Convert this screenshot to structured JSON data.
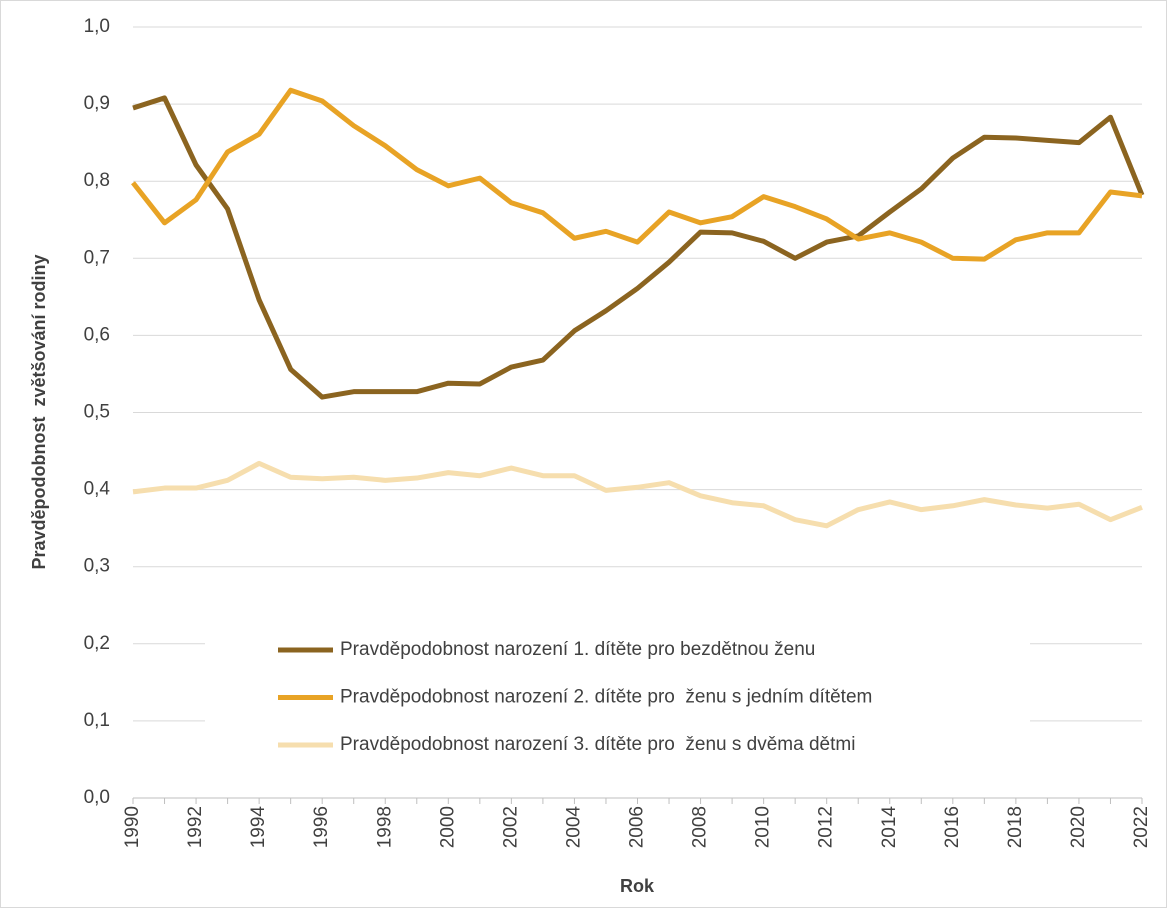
{
  "chart_data": {
    "type": "line",
    "x": [
      1990,
      1991,
      1992,
      1993,
      1994,
      1995,
      1996,
      1997,
      1998,
      1999,
      2000,
      2001,
      2002,
      2003,
      2004,
      2005,
      2006,
      2007,
      2008,
      2009,
      2010,
      2011,
      2012,
      2013,
      2014,
      2015,
      2016,
      2017,
      2018,
      2019,
      2020,
      2021,
      2022
    ],
    "series": [
      {
        "name": "Pravděpodobnost narození 1. dítěte pro bezdětnou ženu",
        "color": "#8b6420",
        "values": [
          0.895,
          0.908,
          0.821,
          0.764,
          0.646,
          0.556,
          0.52,
          0.527,
          0.527,
          0.527,
          0.538,
          0.537,
          0.559,
          0.568,
          0.606,
          0.632,
          0.661,
          0.695,
          0.734,
          0.733,
          0.722,
          0.7,
          0.721,
          0.729,
          0.76,
          0.79,
          0.83,
          0.857,
          0.856,
          0.853,
          0.85,
          0.883,
          0.782
        ]
      },
      {
        "name": "Pravděpodobnost narození 2. dítěte pro  ženu s jedním dítětem",
        "color": "#e8a325",
        "values": [
          0.798,
          0.746,
          0.776,
          0.838,
          0.861,
          0.918,
          0.904,
          0.872,
          0.846,
          0.815,
          0.794,
          0.804,
          0.772,
          0.759,
          0.726,
          0.735,
          0.721,
          0.76,
          0.746,
          0.754,
          0.78,
          0.767,
          0.751,
          0.725,
          0.733,
          0.721,
          0.7,
          0.699,
          0.724,
          0.733,
          0.733,
          0.786,
          0.781
        ]
      },
      {
        "name": "Pravděpodobnost narození 3. dítěte pro  ženu s dvěma dětmi",
        "color": "#f6deae",
        "values": [
          0.397,
          0.402,
          0.402,
          0.412,
          0.434,
          0.416,
          0.414,
          0.416,
          0.412,
          0.415,
          0.422,
          0.418,
          0.428,
          0.418,
          0.418,
          0.399,
          0.403,
          0.409,
          0.392,
          0.383,
          0.379,
          0.361,
          0.353,
          0.374,
          0.384,
          0.374,
          0.379,
          0.387,
          0.38,
          0.376,
          0.381,
          0.361,
          0.377
        ]
      }
    ],
    "xlim": [
      1990,
      2022
    ],
    "xticks": [
      1990,
      1992,
      1994,
      1996,
      1998,
      2000,
      2002,
      2004,
      2006,
      2008,
      2010,
      2012,
      2014,
      2016,
      2018,
      2020,
      2022
    ],
    "ylim": [
      0,
      1
    ],
    "yticks": [
      {
        "value": 0,
        "label": "0,0"
      },
      {
        "value": 0.1,
        "label": "0,1"
      },
      {
        "value": 0.2,
        "label": "0,2"
      },
      {
        "value": 0.3,
        "label": "0,3"
      },
      {
        "value": 0.4,
        "label": "0,4"
      },
      {
        "value": 0.5,
        "label": "0,5"
      },
      {
        "value": 0.6,
        "label": "0,6"
      },
      {
        "value": 0.7,
        "label": "0,7"
      },
      {
        "value": 0.8,
        "label": "0,8"
      },
      {
        "value": 0.9,
        "label": "0,9"
      },
      {
        "value": 1,
        "label": "1,0"
      }
    ],
    "xlabel": "Rok",
    "ylabel": "Pravděpodobnost  zvětšování rodiny",
    "grid": true,
    "legend": "lower center"
  }
}
